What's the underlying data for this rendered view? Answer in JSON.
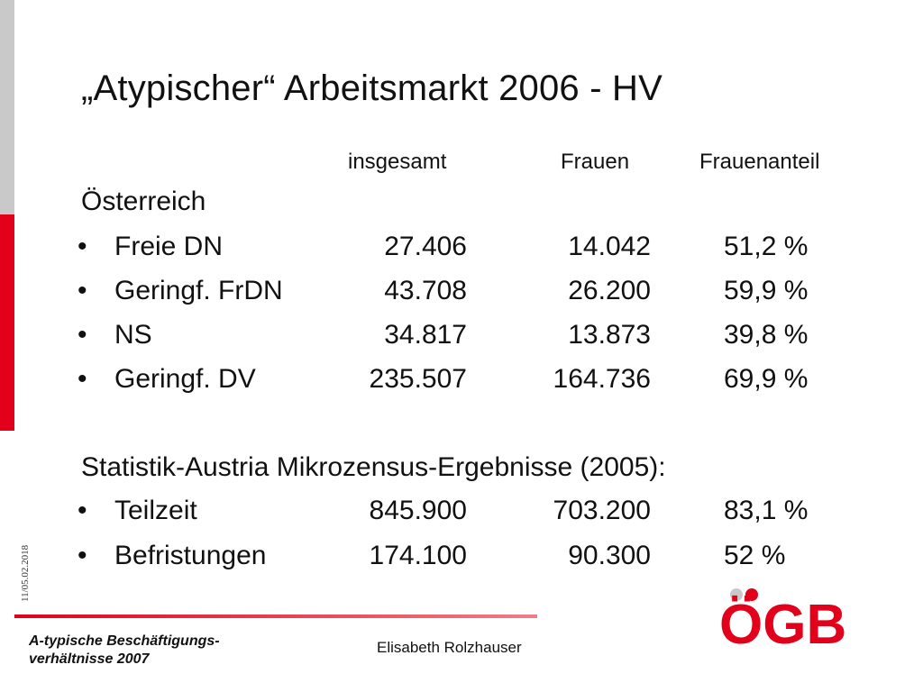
{
  "title": "„Atypischer“ Arbeitsmarkt 2006 - HV",
  "columns": [
    "insgesamt",
    "Frauen",
    "Frauenanteil"
  ],
  "section1": {
    "heading": "Österreich"
  },
  "bullet": "•",
  "rows1": [
    {
      "label": "Freie DN",
      "insgesamt": "27.406",
      "frauen": "14.042",
      "anteil": "51,2 %"
    },
    {
      "label": "Geringf. FrDN",
      "insgesamt": "43.708",
      "frauen": "26.200",
      "anteil": "59,9 %"
    },
    {
      "label": "NS",
      "insgesamt": "34.817",
      "frauen": "13.873",
      "anteil": "39,8 %"
    },
    {
      "label": "Geringf. DV",
      "insgesamt": "235.507",
      "frauen": "164.736",
      "anteil": "69,9 %"
    }
  ],
  "section2": {
    "heading": "Statistik-Austria Mikrozensus-Ergebnisse (2005):"
  },
  "rows2": [
    {
      "label": "Teilzeit",
      "insgesamt": "845.900",
      "frauen": "703.200",
      "anteil": "83,1 %"
    },
    {
      "label": "Befristungen",
      "insgesamt": "174.100",
      "frauen": "90.300",
      "anteil": "52 %"
    }
  ],
  "side_date": "11/05.02.2018",
  "footer": {
    "left_line1": "A-typische Beschäftigungs-",
    "left_line2": "verhältnisse 2007",
    "author": "Elisabeth Rolzhauser"
  },
  "logo": {
    "text": "ÖGB",
    "color": "#e2001a"
  },
  "colors": {
    "accent": "#e2001a",
    "side_grey": "#c9c9c9"
  }
}
